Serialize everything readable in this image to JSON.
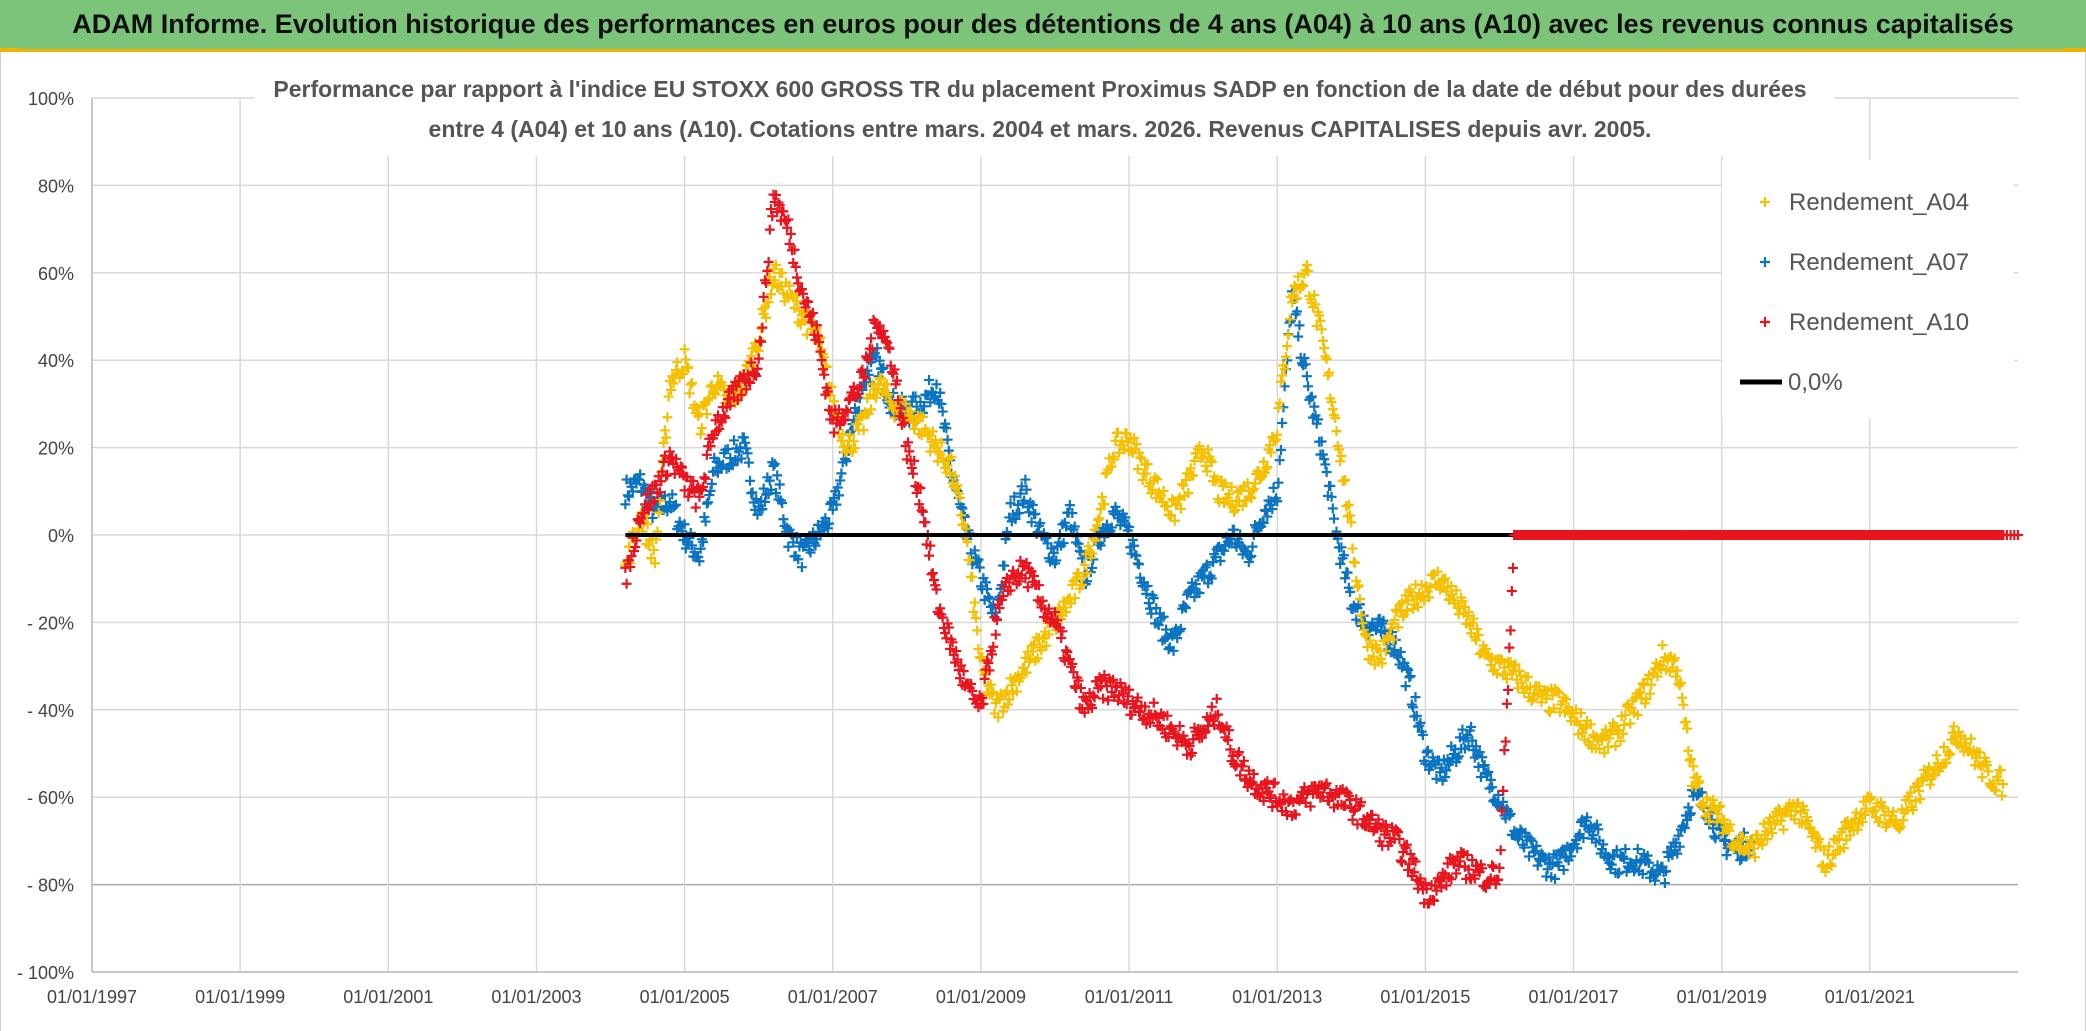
{
  "banner": {
    "title": "ADAM Informe. Evolution historique des performances en euros pour des détentions de 4 ans (A04) à 10 ans (A10) avec les revenus connus capitalisés"
  },
  "chart_data": {
    "type": "scatter",
    "title_lines": [
      "Performance par rapport à l'indice EU STOXX 600 GROSS TR  du placement Proximus SADP en fonction de la date de début pour des durées",
      "entre 4 (A04) et 10 ans (A10). Cotations entre mars. 2004 et mars. 2026. Revenus CAPITALISES depuis avr. 2005."
    ],
    "xlabel": "",
    "ylabel": "",
    "x_range": [
      1997.0,
      2023.0
    ],
    "ylim": [
      -100,
      100
    ],
    "y_ticks": [
      {
        "value": 100,
        "label": "100%"
      },
      {
        "value": 80,
        "label": "80%"
      },
      {
        "value": 60,
        "label": "60%"
      },
      {
        "value": 40,
        "label": "40%"
      },
      {
        "value": 20,
        "label": "20%"
      },
      {
        "value": 0,
        "label": "0%"
      },
      {
        "value": -20,
        "label": "- 20%"
      },
      {
        "value": -40,
        "label": "- 40%"
      },
      {
        "value": -60,
        "label": "- 60%"
      },
      {
        "value": -80,
        "label": "- 80%"
      },
      {
        "value": -100,
        "label": "- 100%"
      }
    ],
    "x_ticks": [
      {
        "value": 1997.0,
        "label": "01/01/1997"
      },
      {
        "value": 1999.0,
        "label": "01/01/1999"
      },
      {
        "value": 2001.0,
        "label": "01/01/2001"
      },
      {
        "value": 2003.0,
        "label": "01/01/2003"
      },
      {
        "value": 2005.0,
        "label": "01/01/2005"
      },
      {
        "value": 2007.0,
        "label": "01/01/2007"
      },
      {
        "value": 2009.0,
        "label": "01/01/2009"
      },
      {
        "value": 2011.0,
        "label": "01/01/2011"
      },
      {
        "value": 2013.0,
        "label": "01/01/2013"
      },
      {
        "value": 2015.0,
        "label": "01/01/2015"
      },
      {
        "value": 2017.0,
        "label": "01/01/2017"
      },
      {
        "value": 2019.0,
        "label": "01/01/2019"
      },
      {
        "value": 2021.0,
        "label": "01/01/2021"
      }
    ],
    "grid": true,
    "legend_position": "top-right",
    "series": [
      {
        "name": "Rendement_A04",
        "marker": "+",
        "color": "#f5c000",
        "x": [
          2004.2,
          2004.4,
          2004.6,
          2004.8,
          2005.0,
          2005.2,
          2005.4,
          2005.6,
          2005.8,
          2006.0,
          2006.2,
          2006.4,
          2006.6,
          2006.8,
          2007.0,
          2007.2,
          2007.4,
          2007.6,
          2007.8,
          2008.0,
          2008.2,
          2008.4,
          2008.6,
          2008.8,
          2009.0,
          2009.2,
          2009.4,
          2009.6,
          2009.8,
          2010.0,
          2010.2,
          2010.4,
          2010.6,
          2010.8,
          2011.0,
          2011.2,
          2011.4,
          2011.6,
          2011.8,
          2012.0,
          2012.2,
          2012.4,
          2012.6,
          2012.8,
          2013.0,
          2013.2,
          2013.4,
          2013.6,
          2013.8,
          2014.0,
          2014.2,
          2014.4,
          2014.6,
          2014.8,
          2015.0,
          2015.2,
          2015.4,
          2015.6,
          2015.8,
          2016.0,
          2016.2,
          2016.4,
          2016.6,
          2016.8,
          2017.0,
          2017.2,
          2017.4,
          2017.6,
          2017.8,
          2018.0,
          2018.2,
          2018.4,
          2018.6,
          2018.8,
          2019.0,
          2019.2,
          2019.4,
          2019.6,
          2019.8,
          2020.0,
          2020.2,
          2020.4,
          2020.6,
          2020.8,
          2021.0,
          2021.2,
          2021.4,
          2021.6,
          2021.8,
          2022.0,
          2022.2,
          2022.4,
          2022.6,
          2022.8
        ],
        "y": [
          -8,
          5,
          -5,
          35,
          40,
          25,
          35,
          30,
          35,
          45,
          60,
          55,
          50,
          45,
          30,
          20,
          25,
          35,
          30,
          28,
          25,
          20,
          15,
          0,
          -30,
          -40,
          -35,
          -30,
          -25,
          -20,
          -15,
          -8,
          5,
          20,
          22,
          15,
          10,
          5,
          12,
          20,
          10,
          8,
          10,
          15,
          25,
          55,
          60,
          45,
          25,
          0,
          -25,
          -28,
          -20,
          -15,
          -12,
          -10,
          -15,
          -20,
          -28,
          -30,
          -32,
          -35,
          -38,
          -38,
          -42,
          -45,
          -48,
          -45,
          -40,
          -35,
          -28,
          -30,
          -55,
          -62,
          -65,
          -70,
          -72,
          -68,
          -65,
          -62,
          -68,
          -75,
          -70,
          -65,
          -62,
          -64,
          -66,
          -60,
          -55,
          -50,
          -45,
          -50,
          -55,
          -57
        ]
      },
      {
        "name": "Rendement_A07",
        "marker": "+",
        "color": "#0a73c2",
        "x": [
          2004.2,
          2004.4,
          2004.6,
          2004.8,
          2005.0,
          2005.2,
          2005.4,
          2005.6,
          2005.8,
          2006.0,
          2006.2,
          2006.4,
          2006.6,
          2006.8,
          2007.0,
          2007.2,
          2007.4,
          2007.6,
          2007.8,
          2008.0,
          2008.2,
          2008.4,
          2008.6,
          2008.8,
          2009.0,
          2009.2,
          2009.4,
          2009.6,
          2009.8,
          2010.0,
          2010.2,
          2010.4,
          2010.6,
          2010.8,
          2011.0,
          2011.2,
          2011.4,
          2011.6,
          2011.8,
          2012.0,
          2012.2,
          2012.4,
          2012.6,
          2012.8,
          2013.0,
          2013.2,
          2013.4,
          2013.6,
          2013.8,
          2014.0,
          2014.2,
          2014.4,
          2014.6,
          2014.8,
          2015.0,
          2015.2,
          2015.4,
          2015.6,
          2015.8,
          2016.0,
          2016.2,
          2016.4,
          2016.6,
          2016.8,
          2017.0,
          2017.2,
          2017.4,
          2017.6,
          2017.8,
          2018.0,
          2018.2,
          2018.4,
          2018.6,
          2018.8,
          2019.0,
          2019.2,
          2019.4
        ],
        "y": [
          10,
          12,
          5,
          8,
          0,
          -5,
          15,
          18,
          20,
          5,
          15,
          0,
          -5,
          0,
          5,
          20,
          35,
          40,
          30,
          28,
          30,
          35,
          15,
          0,
          -10,
          -20,
          5,
          10,
          0,
          -5,
          5,
          -10,
          0,
          5,
          0,
          -10,
          -20,
          -25,
          -15,
          -10,
          -5,
          0,
          -5,
          5,
          10,
          55,
          35,
          20,
          0,
          -15,
          -20,
          -22,
          -25,
          -35,
          -50,
          -55,
          -50,
          -45,
          -55,
          -60,
          -68,
          -72,
          -75,
          -76,
          -70,
          -65,
          -72,
          -75,
          -74,
          -76,
          -78,
          -70,
          -60,
          -62,
          -70,
          -72,
          -70
        ]
      },
      {
        "name": "Rendement_A10",
        "marker": "+",
        "color": "#e8141e",
        "x": [
          2004.2,
          2004.4,
          2004.6,
          2004.8,
          2005.0,
          2005.2,
          2005.4,
          2005.6,
          2005.8,
          2006.0,
          2006.2,
          2006.4,
          2006.6,
          2006.8,
          2007.0,
          2007.2,
          2007.4,
          2007.6,
          2007.8,
          2008.0,
          2008.2,
          2008.4,
          2008.6,
          2008.8,
          2009.0,
          2009.2,
          2009.4,
          2009.6,
          2009.8,
          2010.0,
          2010.2,
          2010.4,
          2010.6,
          2010.8,
          2011.0,
          2011.2,
          2011.4,
          2011.6,
          2011.8,
          2012.0,
          2012.2,
          2012.4,
          2012.6,
          2012.8,
          2013.0,
          2013.2,
          2013.4,
          2013.6,
          2013.8,
          2014.0,
          2014.2,
          2014.4,
          2014.6,
          2014.8,
          2015.0,
          2015.2,
          2015.4,
          2015.6,
          2015.8,
          2016.0,
          2016.2,
          2016.4,
          2016.6,
          2016.8,
          2017.0,
          2017.2,
          2017.4,
          2017.6,
          2017.8,
          2018.0,
          2018.2,
          2018.4,
          2018.6,
          2018.8,
          2019.0,
          2019.2,
          2019.4,
          2019.6,
          2019.8,
          2020.0,
          2020.2,
          2020.4,
          2020.6,
          2020.8,
          2021.0,
          2021.2,
          2021.4,
          2021.6,
          2021.8,
          2022.0,
          2022.2,
          2022.4,
          2022.6,
          2022.8
        ],
        "y": [
          -10,
          5,
          10,
          18,
          12,
          8,
          25,
          30,
          35,
          40,
          78,
          70,
          55,
          45,
          25,
          30,
          35,
          50,
          40,
          20,
          8,
          -15,
          -25,
          -35,
          -40,
          -20,
          -10,
          -8,
          -15,
          -20,
          -30,
          -40,
          -35,
          -35,
          -38,
          -40,
          -42,
          -45,
          -48,
          -45,
          -40,
          -50,
          -55,
          -58,
          -60,
          -62,
          -60,
          -58,
          -60,
          -62,
          -65,
          -68,
          -70,
          -75,
          -82,
          -80,
          -75,
          -76,
          -78,
          -78,
          0,
          0,
          0,
          0,
          0,
          0,
          0,
          0,
          0,
          0,
          0,
          0,
          0,
          0,
          0,
          0,
          0,
          0,
          0,
          0,
          0,
          0,
          0,
          0,
          0,
          0,
          0,
          0,
          0,
          0,
          0,
          0,
          0,
          0
        ]
      },
      {
        "name": "0,0%",
        "marker": "line",
        "color": "#000000",
        "x": [
          2004.2,
          2022.0
        ],
        "y": [
          0,
          0
        ]
      }
    ]
  }
}
